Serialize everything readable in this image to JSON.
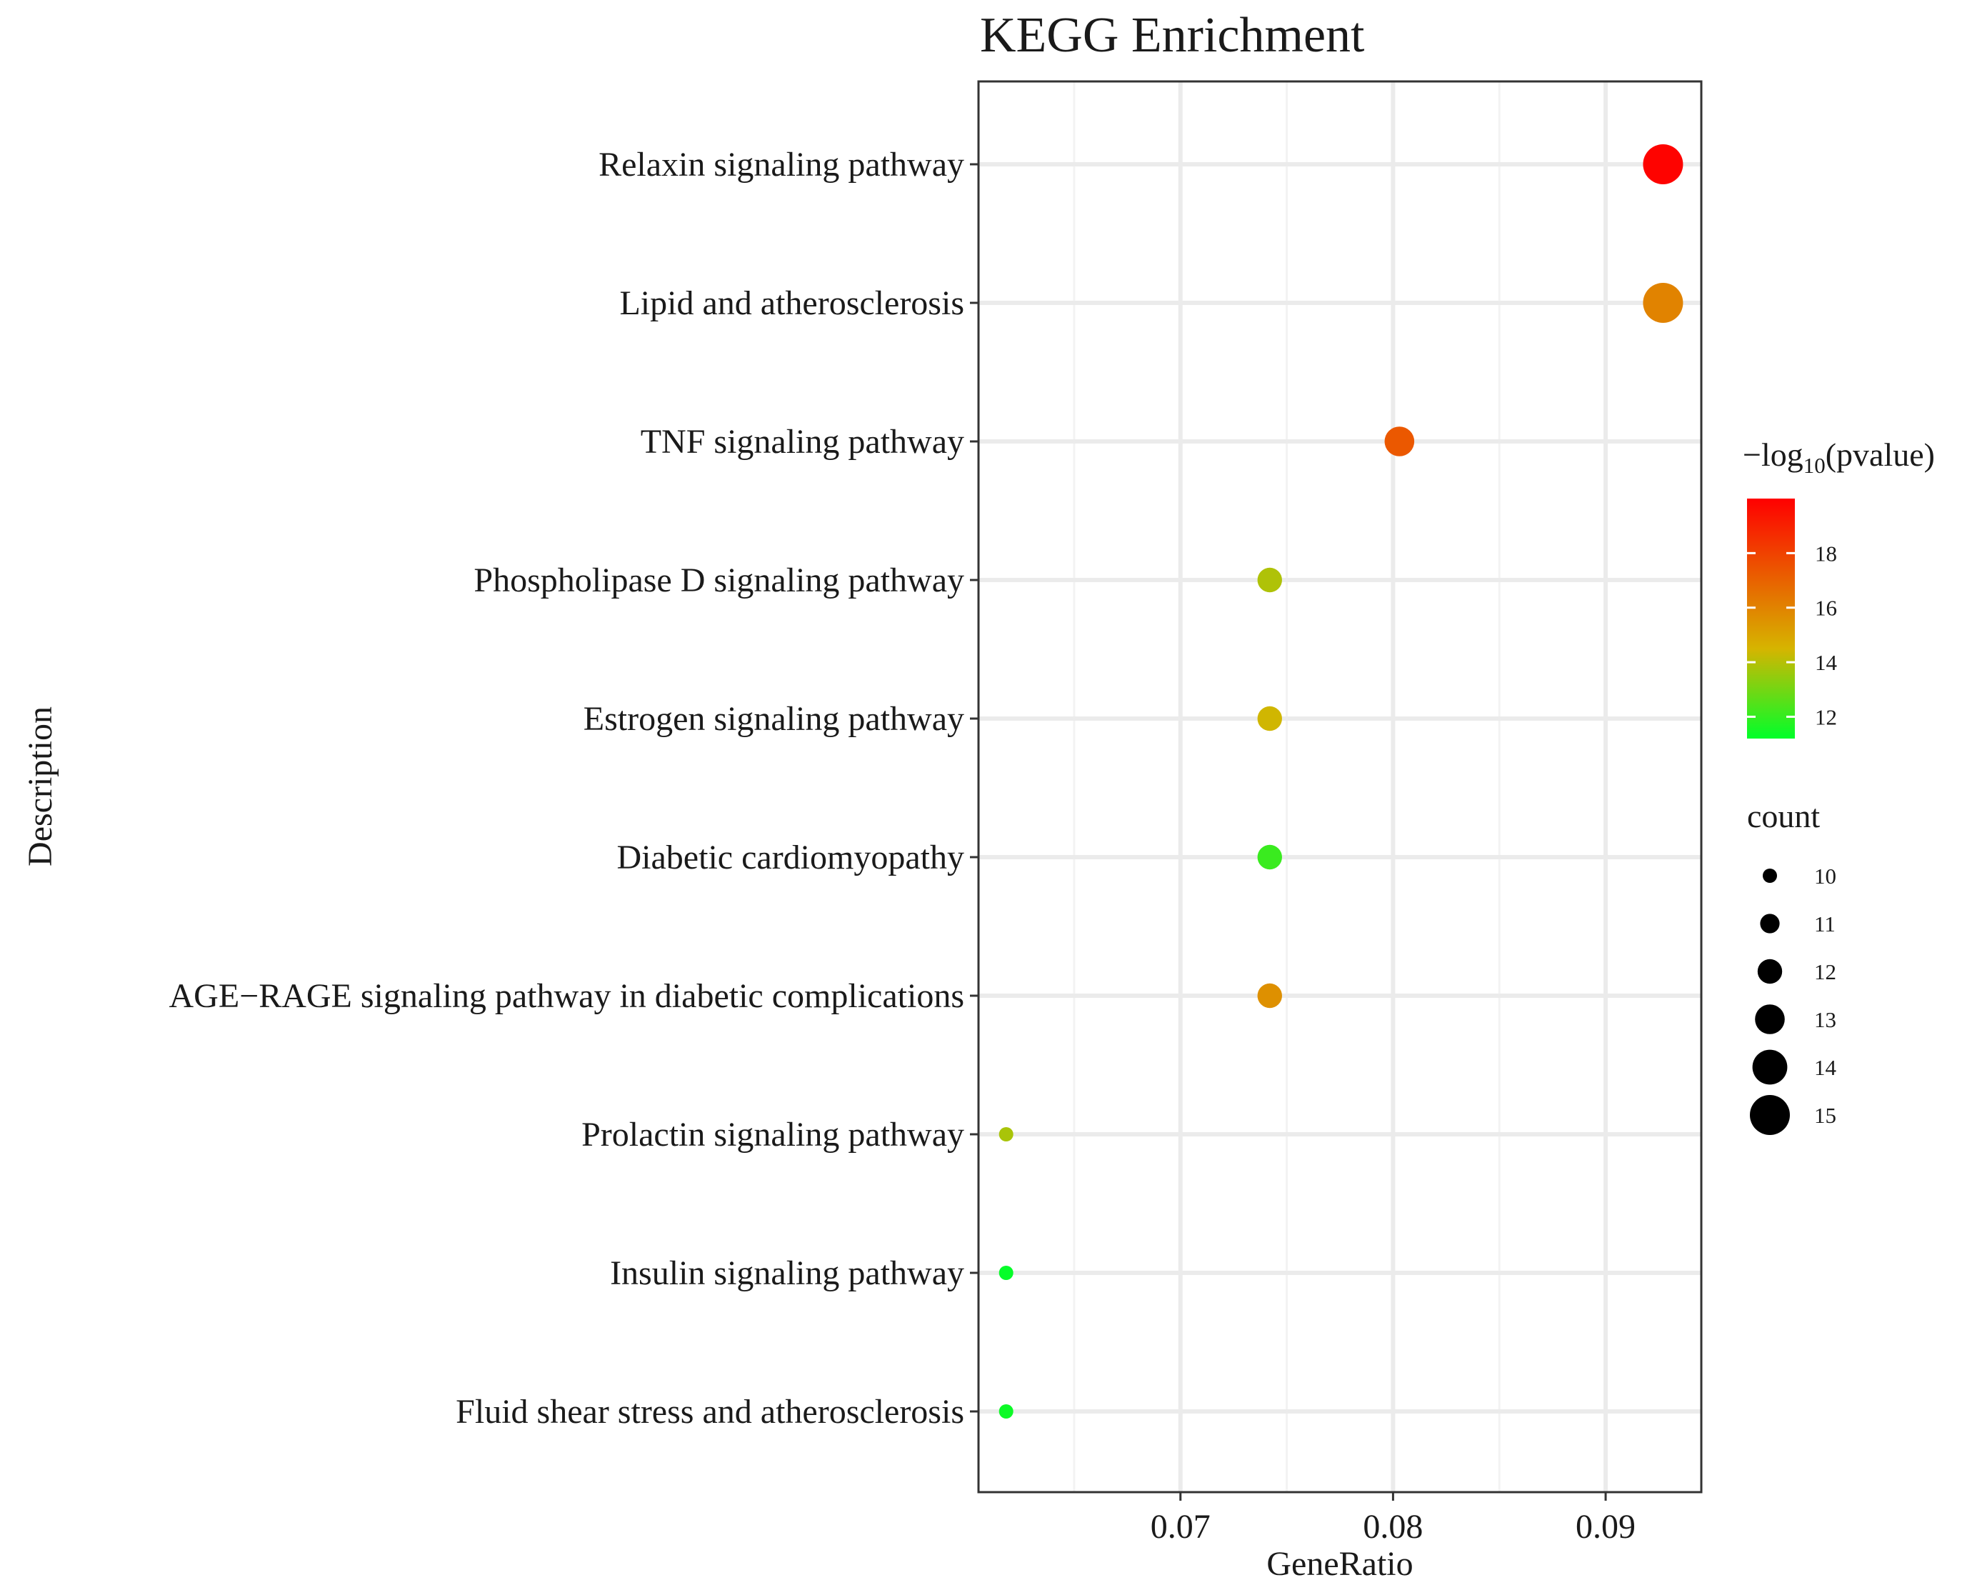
{
  "chart_data": {
    "type": "scatter",
    "title": "KEGG Enrichment",
    "xlabel": "GeneRatio",
    "ylabel": "Description",
    "xlim": [
      0.0605,
      0.0945
    ],
    "x_ticks": [
      0.07,
      0.08,
      0.09
    ],
    "x_tick_labels": [
      "0.07",
      "0.08",
      "0.09"
    ],
    "grid": true,
    "points": [
      {
        "description": "Relaxin signaling pathway",
        "gene_ratio": 0.0927,
        "neg_log10_pvalue": 19.9,
        "count": 15
      },
      {
        "description": "Lipid and atherosclerosis",
        "gene_ratio": 0.0927,
        "neg_log10_pvalue": 16.0,
        "count": 15
      },
      {
        "description": "TNF signaling pathway",
        "gene_ratio": 0.0803,
        "neg_log10_pvalue": 17.3,
        "count": 13
      },
      {
        "description": "Phospholipase D signaling pathway",
        "gene_ratio": 0.0742,
        "neg_log10_pvalue": 13.9,
        "count": 12
      },
      {
        "description": "Estrogen signaling pathway",
        "gene_ratio": 0.0742,
        "neg_log10_pvalue": 14.4,
        "count": 12
      },
      {
        "description": "Diabetic cardiomyopathy",
        "gene_ratio": 0.0742,
        "neg_log10_pvalue": 12.1,
        "count": 12
      },
      {
        "description": "AGE−RAGE signaling pathway in diabetic complications",
        "gene_ratio": 0.0742,
        "neg_log10_pvalue": 15.6,
        "count": 12
      },
      {
        "description": "Prolactin signaling pathway",
        "gene_ratio": 0.0618,
        "neg_log10_pvalue": 13.8,
        "count": 10
      },
      {
        "description": "Insulin signaling pathway",
        "gene_ratio": 0.0618,
        "neg_log10_pvalue": 11.3,
        "count": 10
      },
      {
        "description": "Fluid shear stress and atherosclerosis",
        "gene_ratio": 0.0618,
        "neg_log10_pvalue": 11.4,
        "count": 10
      }
    ],
    "color_legend": {
      "title_prefix": "−log",
      "title_sub": "10",
      "title_suffix": "(pvalue)",
      "range": [
        11.2,
        20
      ],
      "ticks": [
        12,
        14,
        16,
        18
      ],
      "tick_labels": [
        "12",
        "14",
        "16",
        "18"
      ],
      "low_color": "#00ff2a",
      "mid_color": "#d6b400",
      "high_color": "#ff0000",
      "mid_value": 14.5
    },
    "size_legend": {
      "title": "count",
      "values": [
        10,
        11,
        12,
        13,
        14,
        15
      ],
      "labels": [
        "10",
        "11",
        "12",
        "13",
        "14",
        "15"
      ],
      "range": [
        10,
        15
      ]
    },
    "legend_position": "right"
  }
}
